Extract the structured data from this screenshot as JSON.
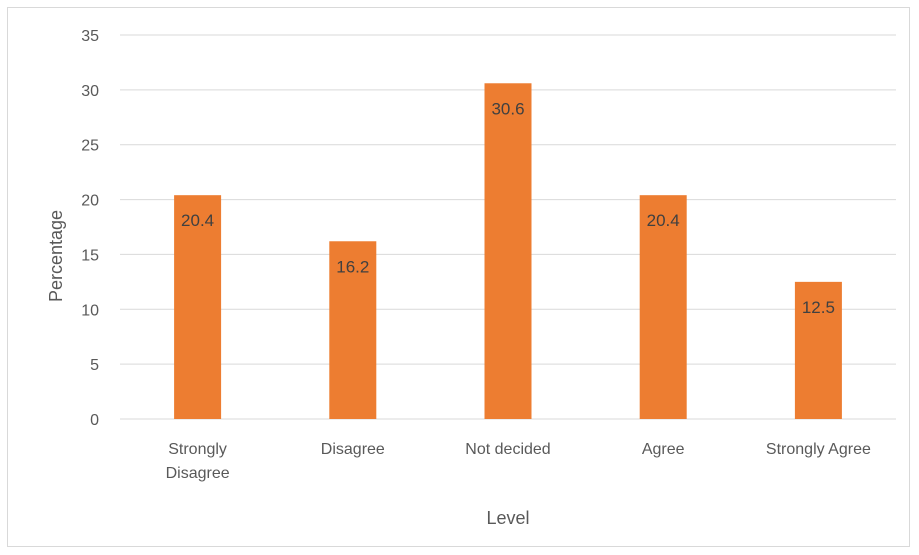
{
  "chart_data": {
    "type": "bar",
    "title": "",
    "categories": [
      "Strongly Disagree",
      "Disagree",
      "Not decided",
      "Agree",
      "Strongly Agree"
    ],
    "category_lines": [
      [
        "Strongly",
        "Disagree"
      ],
      [
        "Disagree"
      ],
      [
        "Not decided"
      ],
      [
        "Agree"
      ],
      [
        "Strongly Agree"
      ]
    ],
    "values": [
      20.4,
      16.2,
      30.6,
      20.4,
      12.5
    ],
    "data_labels": [
      "20.4",
      "16.2",
      "30.6",
      "20.4",
      "12.5"
    ],
    "xlabel": "Level",
    "ylabel": "Percentage",
    "ylim": [
      0,
      35
    ],
    "yticks": [
      0,
      5,
      10,
      15,
      20,
      25,
      30,
      35
    ],
    "grid": true,
    "legend": "none",
    "bar_color": "#ED7D31",
    "grid_color": "#d9d9d9"
  }
}
